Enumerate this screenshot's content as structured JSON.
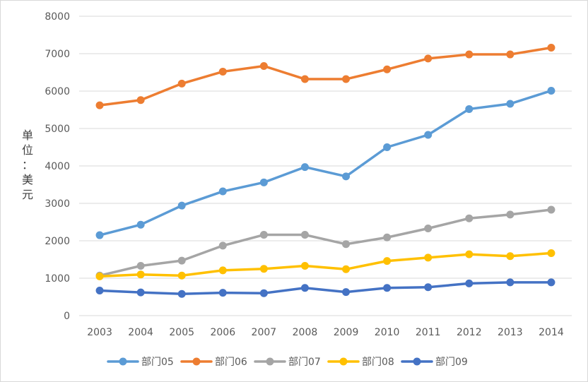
{
  "chart_data": {
    "type": "line",
    "ylabel": "单位：美元",
    "xlabel": "",
    "ylim": [
      0,
      8000
    ],
    "y_ticks": [
      "0",
      "1000",
      "2000",
      "3000",
      "4000",
      "5000",
      "6000",
      "7000",
      "8000"
    ],
    "categories": [
      "2003",
      "2004",
      "2005",
      "2006",
      "2007",
      "2008",
      "2009",
      "2010",
      "2011",
      "2012",
      "2013",
      "2014"
    ],
    "grid": "horizontal",
    "legend_position": "bottom",
    "series": [
      {
        "name": "部门05",
        "color": "#5B9BD5",
        "values": [
          2150,
          2430,
          2940,
          3320,
          3560,
          3970,
          3720,
          4500,
          4830,
          5520,
          5660,
          6010
        ]
      },
      {
        "name": "部门06",
        "color": "#ED7D31",
        "values": [
          5620,
          5760,
          6200,
          6520,
          6670,
          6320,
          6320,
          6580,
          6870,
          6980,
          6980,
          7160
        ]
      },
      {
        "name": "部门07",
        "color": "#A5A5A5",
        "values": [
          1070,
          1330,
          1470,
          1870,
          2160,
          2160,
          1910,
          2090,
          2330,
          2600,
          2700,
          2830
        ]
      },
      {
        "name": "部门08",
        "color": "#FFC000",
        "values": [
          1050,
          1100,
          1070,
          1210,
          1250,
          1330,
          1240,
          1460,
          1550,
          1640,
          1590,
          1670
        ]
      },
      {
        "name": "部门09",
        "color": "#4472C4",
        "values": [
          670,
          620,
          580,
          610,
          600,
          740,
          630,
          740,
          760,
          860,
          890,
          890
        ]
      }
    ]
  }
}
